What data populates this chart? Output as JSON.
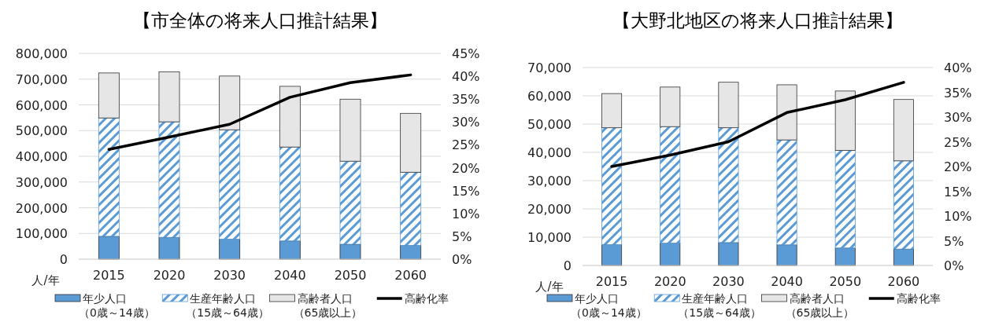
{
  "chart_data": [
    {
      "type": "bar",
      "title": "【市全体の将来人口推計結果】",
      "xlabel": "人/年",
      "stacked": true,
      "legend": "bottom",
      "grid": "y",
      "categories": [
        "2015",
        "2020",
        "2030",
        "2040",
        "2050",
        "2060"
      ],
      "series": [
        {
          "name": "年少人口（0歳～14歳）",
          "color": "#5b9bd5",
          "values": [
            89000,
            85000,
            78000,
            71000,
            58000,
            54000
          ]
        },
        {
          "name": "生産年齢人口（15歳～64歳）",
          "color": "#5b9bd5",
          "values": [
            460000,
            449000,
            425000,
            365000,
            323000,
            284000
          ]
        },
        {
          "name": "高齢者人口（65歳以上）",
          "color": "#e6e6e6",
          "values": [
            175000,
            194000,
            209000,
            236000,
            241000,
            229000
          ]
        },
        {
          "name": "高齢化率",
          "type": "line",
          "axis": "y2",
          "color": "#000000",
          "values": [
            24.0,
            26.7,
            29.5,
            35.4,
            38.6,
            40.3
          ]
        }
      ],
      "ylim": [
        0,
        800000
      ],
      "yticks": [
        {
          "value": 0,
          "label": "0"
        },
        {
          "value": 100000,
          "label": "100,000"
        },
        {
          "value": 200000,
          "label": "200,000"
        },
        {
          "value": 300000,
          "label": "300,000"
        },
        {
          "value": 400000,
          "label": "400,000"
        },
        {
          "value": 500000,
          "label": "500,000"
        },
        {
          "value": 600000,
          "label": "600,000"
        },
        {
          "value": 700000,
          "label": "700,000"
        },
        {
          "value": 800000,
          "label": "800,000"
        }
      ],
      "y2lim": [
        0,
        45
      ],
      "y2ticks": [
        {
          "value": 0,
          "label": "0%"
        },
        {
          "value": 5,
          "label": "5%"
        },
        {
          "value": 10,
          "label": "10%"
        },
        {
          "value": 15,
          "label": "15%"
        },
        {
          "value": 20,
          "label": "20%"
        },
        {
          "value": 25,
          "label": "25%"
        },
        {
          "value": 30,
          "label": "30%"
        },
        {
          "value": 35,
          "label": "35%"
        },
        {
          "value": 40,
          "label": "40%"
        },
        {
          "value": 45,
          "label": "45%"
        }
      ]
    },
    {
      "type": "bar",
      "title": "【大野北地区の将来人口推計結果】",
      "xlabel": "人/年",
      "stacked": true,
      "legend": "bottom",
      "grid": "y",
      "categories": [
        "2015",
        "2020",
        "2030",
        "2040",
        "2050",
        "2060"
      ],
      "series": [
        {
          "name": "年少人口（0歳～14歳）",
          "color": "#5b9bd5",
          "values": [
            7400,
            7900,
            8100,
            7300,
            6200,
            5800
          ]
        },
        {
          "name": "生産年齢人口（15歳～64歳）",
          "color": "#5b9bd5",
          "values": [
            41300,
            41200,
            40600,
            37100,
            34500,
            31200
          ]
        },
        {
          "name": "高齢者人口（65歳以上）",
          "color": "#e6e6e6",
          "values": [
            12100,
            14000,
            16100,
            19500,
            21000,
            21700
          ]
        },
        {
          "name": "高齢化率",
          "type": "line",
          "axis": "y2",
          "color": "#000000",
          "values": [
            20.0,
            22.3,
            25.0,
            30.9,
            33.5,
            37.0
          ]
        }
      ],
      "ylim": [
        0,
        70000
      ],
      "yticks": [
        {
          "value": 0,
          "label": "0"
        },
        {
          "value": 10000,
          "label": "10,000"
        },
        {
          "value": 20000,
          "label": "20,000"
        },
        {
          "value": 30000,
          "label": "30,000"
        },
        {
          "value": 40000,
          "label": "40,000"
        },
        {
          "value": 50000,
          "label": "50,000"
        },
        {
          "value": 60000,
          "label": "60,000"
        },
        {
          "value": 70000,
          "label": "70,000"
        }
      ],
      "y2lim": [
        0,
        40
      ],
      "y2ticks": [
        {
          "value": 0,
          "label": "0%"
        },
        {
          "value": 5,
          "label": "5%"
        },
        {
          "value": 10,
          "label": "10%"
        },
        {
          "value": 15,
          "label": "15%"
        },
        {
          "value": 20,
          "label": "20%"
        },
        {
          "value": 25,
          "label": "25%"
        },
        {
          "value": 30,
          "label": "30%"
        },
        {
          "value": 35,
          "label": "35%"
        },
        {
          "value": 40,
          "label": "40%"
        }
      ]
    }
  ]
}
